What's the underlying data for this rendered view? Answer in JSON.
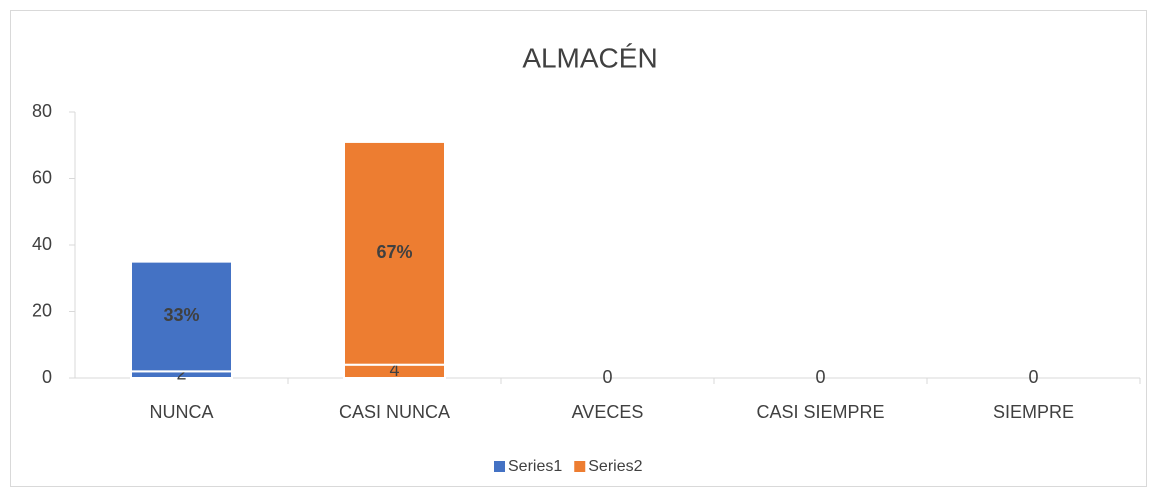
{
  "chart_data": {
    "type": "stacked_bar",
    "title": "ALMACÉN",
    "categories": [
      "NUNCA",
      "CASI NUNCA",
      "AVECES",
      "CASI SIEMPRE",
      "SIEMPRE"
    ],
    "point_colors": [
      "#4472c4",
      "#ed7d31",
      "#a5a5a5",
      "#ffc000",
      "#5b9bd5"
    ],
    "series": [
      {
        "name": "Series1",
        "color": "#4472c4",
        "values": [
          2,
          4,
          0,
          0,
          0
        ]
      },
      {
        "name": "Series2",
        "color": "#ed7d31",
        "values": [
          33,
          67,
          0,
          0,
          0
        ],
        "value_labels": [
          "33%",
          "67%",
          null,
          null,
          null
        ]
      }
    ],
    "ylim": [
      0,
      80
    ],
    "yticks": [
      0,
      20,
      40,
      60,
      80
    ],
    "legend": "bottom"
  }
}
